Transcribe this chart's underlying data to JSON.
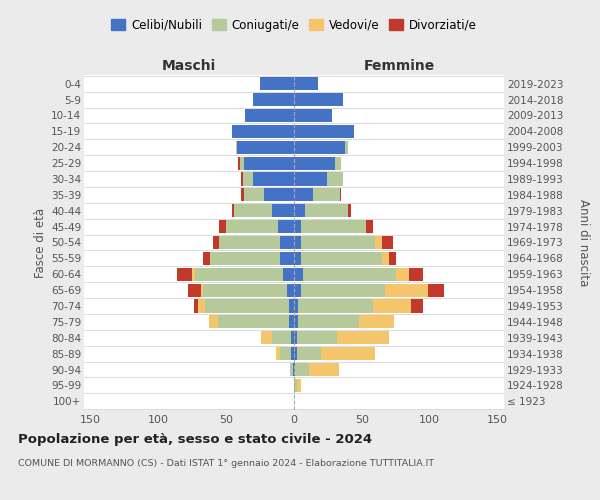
{
  "age_groups": [
    "100+",
    "95-99",
    "90-94",
    "85-89",
    "80-84",
    "75-79",
    "70-74",
    "65-69",
    "60-64",
    "55-59",
    "50-54",
    "45-49",
    "40-44",
    "35-39",
    "30-34",
    "25-29",
    "20-24",
    "15-19",
    "10-14",
    "5-9",
    "0-4"
  ],
  "birth_years": [
    "≤ 1923",
    "1924-1928",
    "1929-1933",
    "1934-1938",
    "1939-1943",
    "1944-1948",
    "1949-1953",
    "1954-1958",
    "1959-1963",
    "1964-1968",
    "1969-1973",
    "1974-1978",
    "1979-1983",
    "1984-1988",
    "1989-1993",
    "1994-1998",
    "1999-2003",
    "2004-2008",
    "2009-2013",
    "2014-2018",
    "2019-2023"
  ],
  "colors": {
    "celibi": "#4472C4",
    "coniugati": "#b5c99a",
    "vedovi": "#f4c56a",
    "divorziati": "#c0392b"
  },
  "maschi": {
    "celibi": [
      0,
      0,
      1,
      2,
      2,
      4,
      4,
      5,
      8,
      10,
      10,
      12,
      16,
      22,
      30,
      37,
      42,
      46,
      36,
      30,
      25
    ],
    "coniugati": [
      0,
      0,
      2,
      8,
      14,
      52,
      62,
      62,
      65,
      52,
      45,
      38,
      28,
      15,
      8,
      3,
      1,
      0,
      0,
      0,
      0
    ],
    "vedovi": [
      0,
      0,
      0,
      3,
      8,
      7,
      5,
      2,
      2,
      0,
      0,
      0,
      0,
      0,
      0,
      0,
      0,
      0,
      0,
      0,
      0
    ],
    "divorziati": [
      0,
      0,
      0,
      0,
      0,
      0,
      3,
      9,
      11,
      5,
      5,
      5,
      2,
      2,
      1,
      1,
      0,
      0,
      0,
      0,
      0
    ]
  },
  "femmine": {
    "celibi": [
      0,
      0,
      1,
      2,
      2,
      3,
      3,
      5,
      7,
      5,
      5,
      5,
      8,
      14,
      24,
      30,
      38,
      44,
      28,
      36,
      18
    ],
    "coniugati": [
      0,
      2,
      10,
      18,
      30,
      45,
      55,
      62,
      68,
      60,
      55,
      48,
      32,
      20,
      12,
      5,
      2,
      0,
      0,
      0,
      0
    ],
    "vedovi": [
      0,
      3,
      22,
      40,
      38,
      26,
      28,
      32,
      10,
      5,
      5,
      0,
      0,
      0,
      0,
      0,
      0,
      0,
      0,
      0,
      0
    ],
    "divorziati": [
      0,
      0,
      0,
      0,
      0,
      0,
      9,
      12,
      10,
      5,
      8,
      5,
      2,
      1,
      0,
      0,
      0,
      0,
      0,
      0,
      0
    ]
  },
  "xlim": 155,
  "xticks": [
    -150,
    -100,
    -50,
    0,
    50,
    100,
    150
  ],
  "title": "Popolazione per età, sesso e stato civile - 2024",
  "subtitle": "COMUNE DI MORMANNO (CS) - Dati ISTAT 1° gennaio 2024 - Elaborazione TUTTITALIA.IT",
  "xlabel_left": "Maschi",
  "xlabel_right": "Femmine",
  "ylabel_left": "Fasce di età",
  "ylabel_right": "Anni di nascita",
  "legend_labels": [
    "Celibi/Nubili",
    "Coniugati/e",
    "Vedovi/e",
    "Divorziati/e"
  ],
  "bg_color": "#ebebeb",
  "plot_bg": "#ffffff"
}
